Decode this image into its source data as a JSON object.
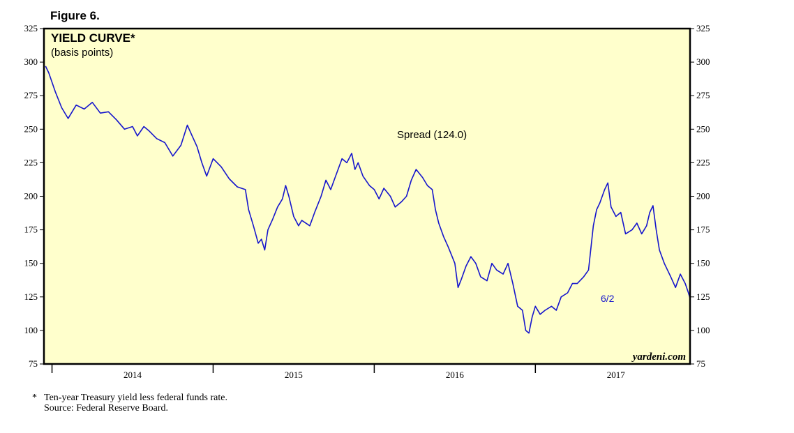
{
  "figure_label": "Figure 6.",
  "watermark": "yardeni.com",
  "footnote": {
    "marker": "*",
    "line1": "Ten-year Treasury yield less federal funds rate.",
    "line2": "Source: Federal Reserve Board."
  },
  "colors": {
    "background": "#ffffcc",
    "line": "#1515cc",
    "frame": "#000000"
  },
  "chart_data": {
    "type": "line",
    "title": "YIELD CURVE*",
    "subtitle": "(basis points)",
    "annotation": "Spread (124.0)",
    "end_label": "6/2",
    "ylim": [
      75,
      325
    ],
    "yticks": [
      75,
      100,
      125,
      150,
      175,
      200,
      225,
      250,
      275,
      300,
      325
    ],
    "xlim": [
      2013.45,
      2017.46
    ],
    "xticks": [
      2013.5,
      2014.5,
      2015.5,
      2016.5
    ],
    "xtick_labels": [
      {
        "label": "2014",
        "x": 2014.0
      },
      {
        "label": "2015",
        "x": 2015.0
      },
      {
        "label": "2016",
        "x": 2016.0
      },
      {
        "label": "2017",
        "x": 2017.0
      }
    ],
    "grid": false,
    "series": [
      {
        "name": "Spread",
        "points": [
          [
            2013.46,
            297
          ],
          [
            2013.48,
            292
          ],
          [
            2013.52,
            278
          ],
          [
            2013.56,
            266
          ],
          [
            2013.6,
            258
          ],
          [
            2013.65,
            268
          ],
          [
            2013.7,
            265
          ],
          [
            2013.75,
            270
          ],
          [
            2013.8,
            262
          ],
          [
            2013.85,
            263
          ],
          [
            2013.9,
            257
          ],
          [
            2013.95,
            250
          ],
          [
            2014.0,
            252
          ],
          [
            2014.03,
            245
          ],
          [
            2014.07,
            252
          ],
          [
            2014.1,
            249
          ],
          [
            2014.15,
            243
          ],
          [
            2014.2,
            240
          ],
          [
            2014.25,
            230
          ],
          [
            2014.3,
            238
          ],
          [
            2014.34,
            253
          ],
          [
            2014.37,
            245
          ],
          [
            2014.4,
            237
          ],
          [
            2014.43,
            225
          ],
          [
            2014.46,
            215
          ],
          [
            2014.5,
            228
          ],
          [
            2014.55,
            222
          ],
          [
            2014.6,
            213
          ],
          [
            2014.65,
            207
          ],
          [
            2014.7,
            205
          ],
          [
            2014.72,
            190
          ],
          [
            2014.75,
            178
          ],
          [
            2014.78,
            165
          ],
          [
            2014.8,
            168
          ],
          [
            2014.82,
            160
          ],
          [
            2014.84,
            175
          ],
          [
            2014.87,
            183
          ],
          [
            2014.9,
            192
          ],
          [
            2014.93,
            198
          ],
          [
            2014.95,
            208
          ],
          [
            2014.97,
            200
          ],
          [
            2015.0,
            185
          ],
          [
            2015.03,
            178
          ],
          [
            2015.05,
            182
          ],
          [
            2015.1,
            178
          ],
          [
            2015.13,
            188
          ],
          [
            2015.17,
            200
          ],
          [
            2015.2,
            212
          ],
          [
            2015.23,
            205
          ],
          [
            2015.26,
            215
          ],
          [
            2015.3,
            228
          ],
          [
            2015.33,
            225
          ],
          [
            2015.36,
            232
          ],
          [
            2015.38,
            220
          ],
          [
            2015.4,
            225
          ],
          [
            2015.43,
            215
          ],
          [
            2015.47,
            208
          ],
          [
            2015.5,
            205
          ],
          [
            2015.53,
            198
          ],
          [
            2015.56,
            206
          ],
          [
            2015.6,
            200
          ],
          [
            2015.63,
            192
          ],
          [
            2015.67,
            196
          ],
          [
            2015.7,
            200
          ],
          [
            2015.73,
            212
          ],
          [
            2015.76,
            220
          ],
          [
            2015.8,
            214
          ],
          [
            2015.83,
            208
          ],
          [
            2015.86,
            205
          ],
          [
            2015.88,
            190
          ],
          [
            2015.9,
            180
          ],
          [
            2015.93,
            170
          ],
          [
            2015.96,
            162
          ],
          [
            2016.0,
            150
          ],
          [
            2016.02,
            132
          ],
          [
            2016.04,
            138
          ],
          [
            2016.07,
            148
          ],
          [
            2016.1,
            155
          ],
          [
            2016.13,
            150
          ],
          [
            2016.16,
            140
          ],
          [
            2016.2,
            137
          ],
          [
            2016.23,
            150
          ],
          [
            2016.26,
            145
          ],
          [
            2016.3,
            142
          ],
          [
            2016.33,
            150
          ],
          [
            2016.36,
            135
          ],
          [
            2016.39,
            118
          ],
          [
            2016.42,
            115
          ],
          [
            2016.44,
            100
          ],
          [
            2016.46,
            98
          ],
          [
            2016.48,
            110
          ],
          [
            2016.5,
            118
          ],
          [
            2016.53,
            112
          ],
          [
            2016.56,
            115
          ],
          [
            2016.6,
            118
          ],
          [
            2016.63,
            115
          ],
          [
            2016.66,
            125
          ],
          [
            2016.7,
            128
          ],
          [
            2016.73,
            135
          ],
          [
            2016.76,
            135
          ],
          [
            2016.8,
            140
          ],
          [
            2016.83,
            145
          ],
          [
            2016.86,
            178
          ],
          [
            2016.88,
            190
          ],
          [
            2016.9,
            195
          ],
          [
            2016.93,
            205
          ],
          [
            2016.95,
            210
          ],
          [
            2016.97,
            192
          ],
          [
            2017.0,
            185
          ],
          [
            2017.03,
            188
          ],
          [
            2017.06,
            172
          ],
          [
            2017.1,
            175
          ],
          [
            2017.13,
            180
          ],
          [
            2017.16,
            172
          ],
          [
            2017.19,
            178
          ],
          [
            2017.21,
            188
          ],
          [
            2017.23,
            193
          ],
          [
            2017.25,
            175
          ],
          [
            2017.27,
            160
          ],
          [
            2017.3,
            150
          ],
          [
            2017.32,
            145
          ],
          [
            2017.34,
            140
          ],
          [
            2017.37,
            132
          ],
          [
            2017.4,
            142
          ],
          [
            2017.43,
            135
          ],
          [
            2017.45,
            128
          ],
          [
            2017.46,
            124
          ]
        ]
      }
    ]
  }
}
